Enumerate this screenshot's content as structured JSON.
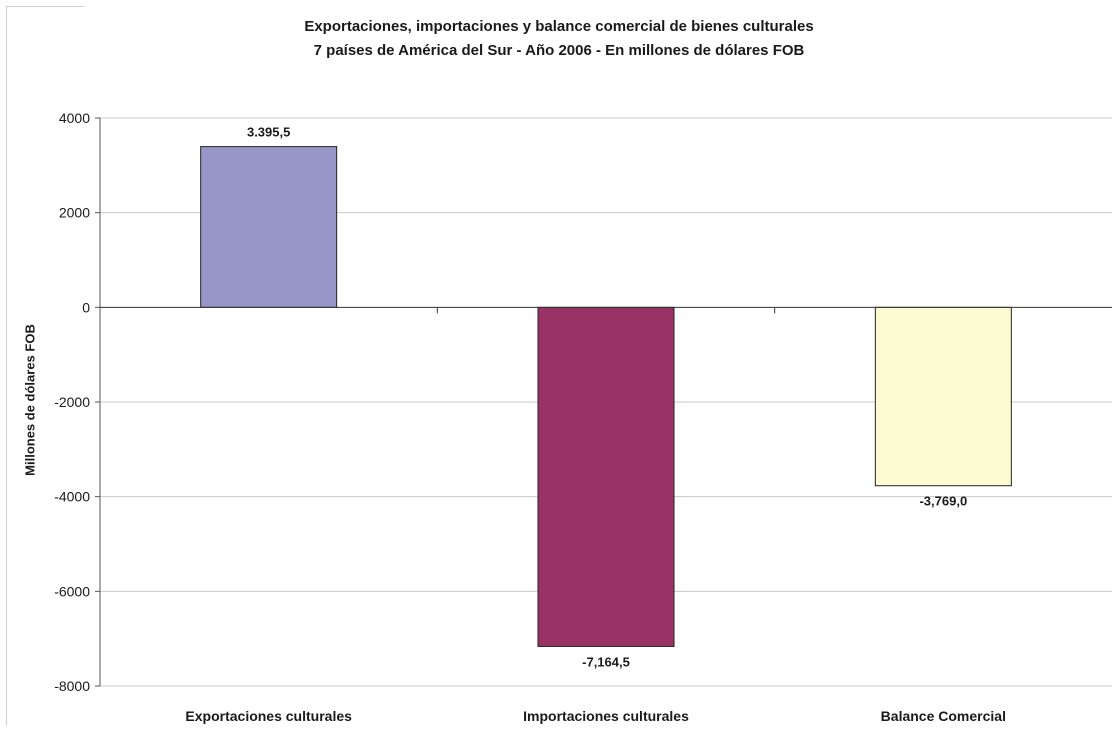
{
  "chart_data": {
    "type": "bar",
    "title": "Exportaciones, importaciones y balance comercial de bienes culturales",
    "subtitle": "7 países de América del Sur - Año 2006 - En millones de dólares FOB",
    "xlabel": "",
    "ylabel": "Millones de dólares FOB",
    "ylim": [
      -8000,
      4000
    ],
    "yticks": [
      4000,
      2000,
      0,
      -2000,
      -4000,
      -6000,
      -8000
    ],
    "yticklabels": [
      "4000",
      "2000",
      "0",
      "-2000",
      "-4000",
      "-6000",
      "-8000"
    ],
    "grid": true,
    "categories": [
      "Exportaciones culturales",
      "Importaciones culturales",
      "Balance Comercial"
    ],
    "values": [
      3395.5,
      -7164.5,
      -3769.0
    ],
    "value_labels": [
      "3.395,5",
      "-7,164,5",
      "-3,769,0"
    ],
    "colors": [
      "#9696c8",
      "#993366",
      "#fbfad0"
    ]
  }
}
